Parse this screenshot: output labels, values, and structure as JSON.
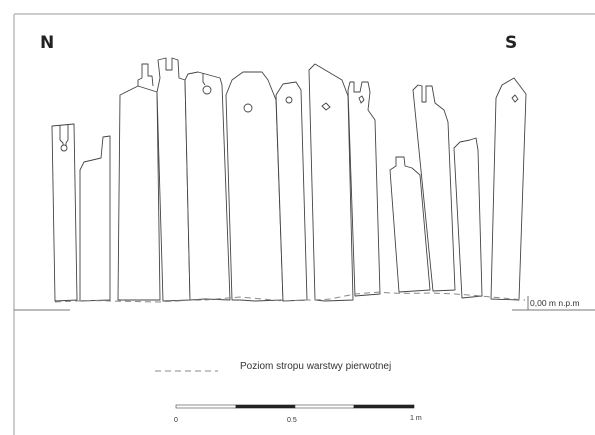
{
  "compass": {
    "north": "N",
    "south": "S"
  },
  "level_marker": {
    "label": "0,00 m n.p.m"
  },
  "legend": {
    "label": "Poziom stropu warstwy pierwotnej"
  },
  "scale_bar": {
    "ticks": [
      "0",
      "0.5",
      "1 m"
    ]
  }
}
